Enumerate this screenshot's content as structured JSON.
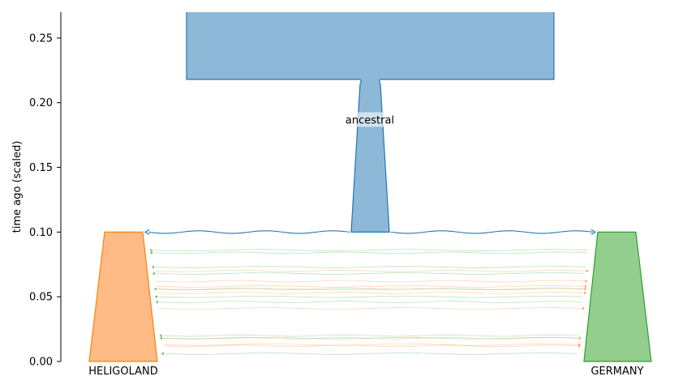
{
  "chart_data": {
    "type": "demography",
    "ylabel": "time ago (scaled)",
    "ylim": [
      0,
      0.27
    ],
    "yticks": [
      0.0,
      0.05,
      0.1,
      0.15,
      0.2,
      0.25
    ],
    "ytick_labels": [
      "0.00",
      "0.05",
      "0.10",
      "0.15",
      "0.20",
      "0.25"
    ],
    "colors": {
      "ancestral_fill": "#8eb8d8",
      "ancestral_edge": "#1f77b4",
      "heligoland_fill": "#ffbb85",
      "heligoland_edge": "#ff7f0e",
      "germany_fill": "#93ce8f",
      "germany_edge": "#2ca02c"
    },
    "demes": [
      {
        "name": "ancestral",
        "label": "ancestral",
        "start_time": "inf",
        "end_time": 0.1,
        "size_change_time": 0.218
      },
      {
        "name": "HELIGOLAND",
        "label": "HELIGOLAND",
        "start_time": 0.1,
        "end_time": 0.0
      },
      {
        "name": "GERMANY",
        "label": "GERMANY",
        "start_time": 0.1,
        "end_time": 0.0
      }
    ],
    "split": {
      "parent": "ancestral",
      "children": [
        "HELIGOLAND",
        "GERMANY"
      ],
      "time": 0.1
    },
    "migration_pulses": [
      {
        "source": "GERMANY",
        "dest": "HELIGOLAND",
        "time": 0.086
      },
      {
        "source": "GERMANY",
        "dest": "HELIGOLAND",
        "time": 0.084
      },
      {
        "source": "GERMANY",
        "dest": "HELIGOLAND",
        "time": 0.073
      },
      {
        "source": "HELIGOLAND",
        "dest": "GERMANY",
        "time": 0.07
      },
      {
        "source": "GERMANY",
        "dest": "HELIGOLAND",
        "time": 0.068
      },
      {
        "source": "HELIGOLAND",
        "dest": "GERMANY",
        "time": 0.062
      },
      {
        "source": "HELIGOLAND",
        "dest": "GERMANY",
        "time": 0.058
      },
      {
        "source": "GERMANY",
        "dest": "HELIGOLAND",
        "time": 0.056
      },
      {
        "source": "HELIGOLAND",
        "dest": "GERMANY",
        "time": 0.056
      },
      {
        "source": "HELIGOLAND",
        "dest": "GERMANY",
        "time": 0.053
      },
      {
        "source": "GERMANY",
        "dest": "HELIGOLAND",
        "time": 0.05
      },
      {
        "source": "GERMANY",
        "dest": "HELIGOLAND",
        "time": 0.046
      },
      {
        "source": "HELIGOLAND",
        "dest": "GERMANY",
        "time": 0.041
      },
      {
        "source": "GERMANY",
        "dest": "HELIGOLAND",
        "time": 0.02
      },
      {
        "source": "GERMANY",
        "dest": "HELIGOLAND",
        "time": 0.018
      },
      {
        "source": "HELIGOLAND",
        "dest": "GERMANY",
        "time": 0.018
      },
      {
        "source": "HELIGOLAND",
        "dest": "GERMANY",
        "time": 0.013
      },
      {
        "source": "HELIGOLAND",
        "dest": "GERMANY",
        "time": 0.012
      },
      {
        "source": "GERMANY",
        "dest": "HELIGOLAND",
        "time": 0.006
      }
    ]
  }
}
